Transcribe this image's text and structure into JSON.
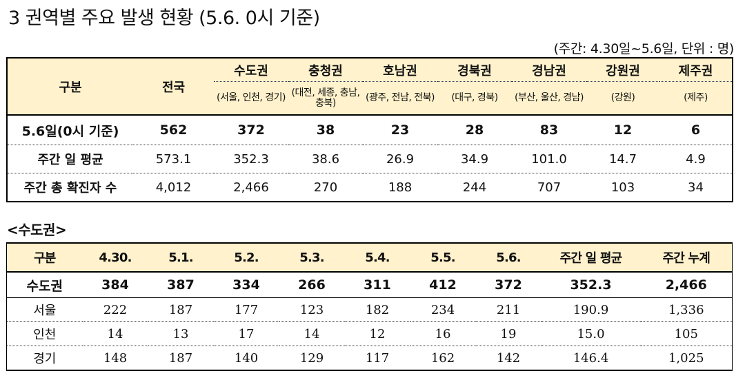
{
  "title": "3  권역별 주요 발생 현황 (5.6. 0시 기준)",
  "unit_note": "(주간: 4.30일~5.6일, 단위 : 명)",
  "table1": {
    "col_label": "구분",
    "col_nation": "전국",
    "regions": [
      {
        "name": "수도권",
        "sub": "(서울, 인천, 경기)"
      },
      {
        "name": "충청권",
        "sub": "(대전, 세종, 충남, 충북)"
      },
      {
        "name": "호남권",
        "sub": "(광주, 전남, 전북)"
      },
      {
        "name": "경북권",
        "sub": "(대구, 경북)"
      },
      {
        "name": "경남권",
        "sub": "(부산, 울산, 경남)"
      },
      {
        "name": "강원권",
        "sub": "(강원)"
      },
      {
        "name": "제주권",
        "sub": "(제주)"
      }
    ],
    "rows": [
      {
        "label": "5.6일(0시 기준)",
        "values": [
          "562",
          "372",
          "38",
          "23",
          "28",
          "83",
          "12",
          "6"
        ]
      },
      {
        "label": "주간 일 평균",
        "values": [
          "573.1",
          "352.3",
          "38.6",
          "26.9",
          "34.9",
          "101.0",
          "14.7",
          "4.9"
        ]
      },
      {
        "label": "주간 총 확진자 수",
        "values": [
          "4,012",
          "2,466",
          "270",
          "188",
          "244",
          "707",
          "103",
          "34"
        ]
      }
    ]
  },
  "section_title": "<수도권>",
  "table2": {
    "headers": [
      "구분",
      "4.30.",
      "5.1.",
      "5.2.",
      "5.3.",
      "5.4.",
      "5.5.",
      "5.6.",
      "주간 일 평균",
      "주간 누계"
    ],
    "total": {
      "label": "수도권",
      "values": [
        "384",
        "387",
        "334",
        "266",
        "311",
        "412",
        "372",
        "352.3",
        "2,466"
      ]
    },
    "rows": [
      {
        "label": "서울",
        "values": [
          "222",
          "187",
          "177",
          "123",
          "182",
          "234",
          "211",
          "190.9",
          "1,336"
        ]
      },
      {
        "label": "인천",
        "values": [
          "14",
          "13",
          "17",
          "14",
          "12",
          "16",
          "19",
          "15.0",
          "105"
        ]
      },
      {
        "label": "경기",
        "values": [
          "148",
          "187",
          "140",
          "129",
          "117",
          "162",
          "142",
          "146.4",
          "1,025"
        ]
      }
    ]
  }
}
